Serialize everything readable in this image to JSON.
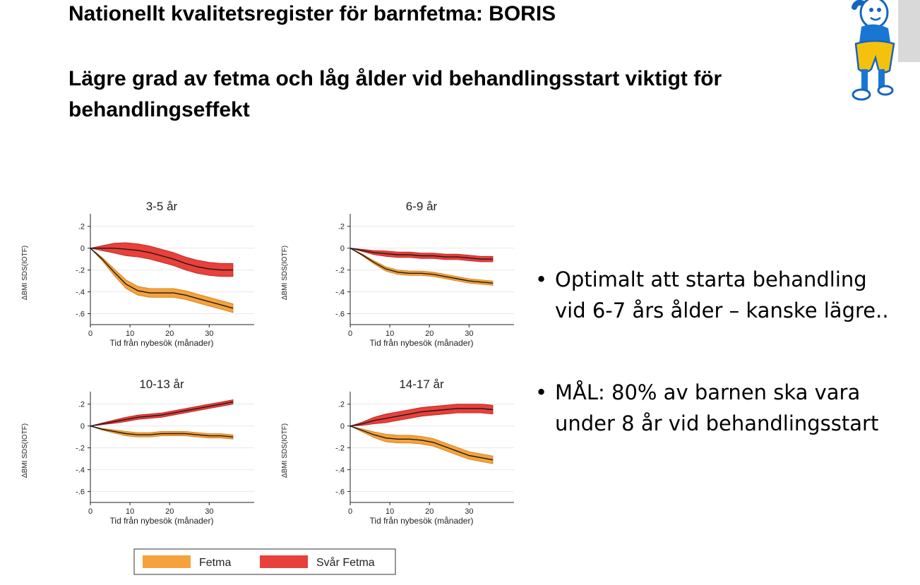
{
  "slide": {
    "title": "Nationellt kvalitetsregister för barnfetma: BORIS",
    "subtitle": "Lägre grad av fetma och låg ålder vid behandlingsstart viktigt för behandlingseffekt",
    "bullets": [
      {
        "line1": "Optimalt att starta behandling",
        "line2": "vid 6-7 års ålder – kanske lägre.."
      },
      {
        "line1": "MÅL: 80% av barnen ska vara",
        "line2": "under 8 år vid behandlingsstart"
      }
    ]
  },
  "colors": {
    "fetma_band": "#f5a23c",
    "fetma_band_edge": "#cf7d1f",
    "svar_fetma_band": "#e8403a",
    "svar_fetma_band_edge": "#b72420",
    "line": "#1a1a1a",
    "grid": "#e9e9e9"
  },
  "chart_data": [
    {
      "type": "line",
      "title": "3-5 år",
      "xlabel": "Tid från nybesök (månader)",
      "ylabel": "ΔBMI SDS(IOTF)",
      "xlim": [
        0,
        36
      ],
      "ylim": [
        -0.7,
        0.25
      ],
      "xticks": [
        0,
        10,
        20,
        30
      ],
      "xtick_labels": [
        "0",
        "10",
        "20",
        "30"
      ],
      "yticks": [
        0.2,
        0,
        -0.2,
        -0.4,
        -0.6
      ],
      "ytick_labels": [
        ".2",
        "0",
        "-.2",
        "-.4",
        "-.6"
      ],
      "x": [
        0,
        3,
        6,
        9,
        12,
        15,
        18,
        21,
        24,
        27,
        30,
        33,
        36
      ],
      "series": [
        {
          "name": "Fetma",
          "values": [
            0,
            -0.1,
            -0.22,
            -0.33,
            -0.39,
            -0.41,
            -0.41,
            -0.41,
            -0.43,
            -0.46,
            -0.49,
            -0.52,
            -0.55
          ],
          "band": 0.04
        },
        {
          "name": "Svår Fetma",
          "values": [
            0,
            0,
            0,
            -0.01,
            -0.02,
            -0.04,
            -0.07,
            -0.1,
            -0.14,
            -0.17,
            -0.19,
            -0.2,
            -0.2
          ],
          "band": 0.06
        }
      ],
      "grid": true
    },
    {
      "type": "line",
      "title": "6-9 år",
      "xlabel": "Tid från nybesök (månader)",
      "ylabel": "ΔBMI SDS(IOTF)",
      "xlim": [
        0,
        36
      ],
      "ylim": [
        -0.7,
        0.25
      ],
      "xticks": [
        0,
        10,
        20,
        30
      ],
      "xtick_labels": [
        "0",
        "10",
        "20",
        "30"
      ],
      "yticks": [
        0.2,
        0,
        -0.2,
        -0.4,
        -0.6
      ],
      "ytick_labels": [
        ".2",
        "0",
        "-.2",
        "-.4",
        "-.6"
      ],
      "x": [
        0,
        3,
        6,
        9,
        12,
        15,
        18,
        21,
        24,
        27,
        30,
        33,
        36
      ],
      "series": [
        {
          "name": "Fetma",
          "values": [
            0,
            -0.06,
            -0.13,
            -0.19,
            -0.22,
            -0.23,
            -0.23,
            -0.24,
            -0.26,
            -0.28,
            -0.3,
            -0.31,
            -0.32
          ],
          "band": 0.02
        },
        {
          "name": "Svår Fetma",
          "values": [
            0,
            -0.02,
            -0.04,
            -0.05,
            -0.06,
            -0.06,
            -0.07,
            -0.07,
            -0.08,
            -0.08,
            -0.09,
            -0.1,
            -0.1
          ],
          "band": 0.025
        }
      ],
      "grid": true
    },
    {
      "type": "line",
      "title": "10-13 år",
      "xlabel": "Tid från nybesök (månader)",
      "ylabel": "ΔBMI SDS(IOTF)",
      "xlim": [
        0,
        36
      ],
      "ylim": [
        -0.7,
        0.25
      ],
      "xticks": [
        0,
        10,
        20,
        30
      ],
      "xtick_labels": [
        "0",
        "10",
        "20",
        "30"
      ],
      "yticks": [
        0.2,
        0,
        -0.2,
        -0.4,
        -0.6
      ],
      "ytick_labels": [
        ".2",
        "0",
        "-.2",
        "-.4",
        "-.6"
      ],
      "x": [
        0,
        3,
        6,
        9,
        12,
        15,
        18,
        21,
        24,
        27,
        30,
        33,
        36
      ],
      "series": [
        {
          "name": "Fetma",
          "values": [
            0,
            -0.03,
            -0.05,
            -0.07,
            -0.08,
            -0.08,
            -0.07,
            -0.07,
            -0.07,
            -0.08,
            -0.09,
            -0.09,
            -0.1
          ],
          "band": 0.02
        },
        {
          "name": "Svår Fetma",
          "values": [
            0,
            0.02,
            0.04,
            0.06,
            0.08,
            0.09,
            0.1,
            0.12,
            0.14,
            0.16,
            0.18,
            0.2,
            0.22
          ],
          "band": 0.02
        }
      ],
      "grid": true
    },
    {
      "type": "line",
      "title": "14-17 år",
      "xlabel": "Tid från nybesök (månader)",
      "ylabel": "ΔBMI SDS(IOTF)",
      "xlim": [
        0,
        36
      ],
      "ylim": [
        -0.7,
        0.25
      ],
      "xticks": [
        0,
        10,
        20,
        30
      ],
      "xtick_labels": [
        "0",
        "10",
        "20",
        "30"
      ],
      "yticks": [
        0.2,
        0,
        -0.2,
        -0.4,
        -0.6
      ],
      "ytick_labels": [
        ".2",
        "0",
        "-.2",
        "-.4",
        "-.6"
      ],
      "x": [
        0,
        3,
        6,
        9,
        12,
        15,
        18,
        21,
        24,
        27,
        30,
        33,
        36
      ],
      "series": [
        {
          "name": "Fetma",
          "values": [
            0,
            -0.04,
            -0.08,
            -0.11,
            -0.12,
            -0.12,
            -0.13,
            -0.15,
            -0.19,
            -0.23,
            -0.27,
            -0.29,
            -0.31
          ],
          "band": 0.035
        },
        {
          "name": "Svår Fetma",
          "values": [
            0,
            0.02,
            0.05,
            0.07,
            0.09,
            0.11,
            0.13,
            0.14,
            0.15,
            0.16,
            0.16,
            0.16,
            0.15
          ],
          "band": 0.04
        }
      ],
      "grid": true
    }
  ],
  "legend": {
    "placement": "bottom",
    "items": [
      {
        "label": "Fetma",
        "color_key": "fetma_band"
      },
      {
        "label": "Svår Fetma",
        "color_key": "svar_fetma_band"
      }
    ]
  }
}
